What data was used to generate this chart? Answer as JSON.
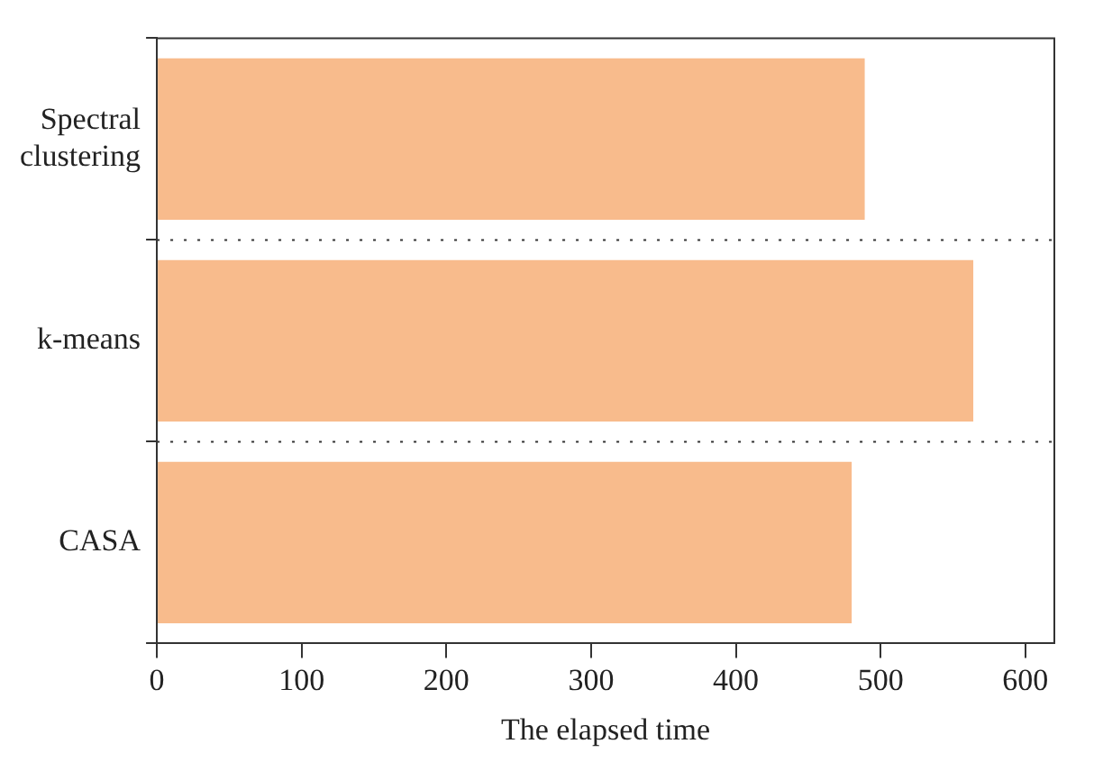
{
  "chart_data": {
    "type": "bar",
    "orientation": "horizontal",
    "xlabel": "The elapsed time",
    "categories": [
      "Spectral clustering",
      "k-means",
      "CASA"
    ],
    "values": [
      489,
      564,
      480
    ],
    "color": "#f8bb8c",
    "xlim": [
      0,
      620
    ],
    "xticks": [
      0,
      100,
      200,
      300,
      400,
      500,
      600
    ],
    "grid": "y"
  }
}
